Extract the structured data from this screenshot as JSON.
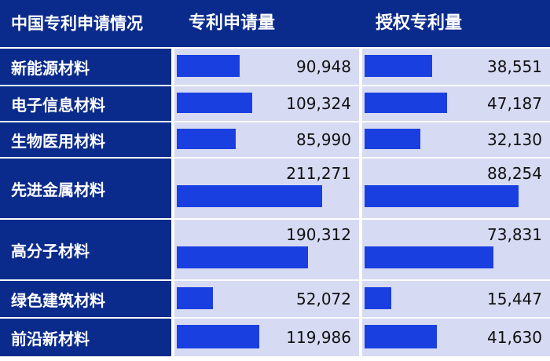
{
  "header": {
    "label": "中国专利申请情况",
    "applications": "专利申请量",
    "grants": "授权专利量"
  },
  "chart_data": {
    "type": "bar",
    "categories": [
      "新能源材料",
      "电子信息材料",
      "生物医用材料",
      "先进金属材料",
      "高分子材料",
      "绿色建筑材料",
      "前沿新材料"
    ],
    "series": [
      {
        "name": "专利申请量",
        "values": [
          90948,
          109324,
          85990,
          211271,
          190312,
          52072,
          119986
        ]
      },
      {
        "name": "授权专利量",
        "values": [
          38551,
          47187,
          32130,
          88254,
          73831,
          15447,
          41630
        ]
      }
    ],
    "value_labels": {
      "applications": [
        "90,948",
        "109,324",
        "85,990",
        "211,271",
        "190,312",
        "52,072",
        "119,986"
      ],
      "grants": [
        "38,551",
        "47,187",
        "32,130",
        "88,254",
        "73,831",
        "15,447",
        "41,630"
      ]
    },
    "colors": {
      "header": "#0b2b8c",
      "bar": "#1a3fe0",
      "cell": "#d6daf2"
    }
  }
}
